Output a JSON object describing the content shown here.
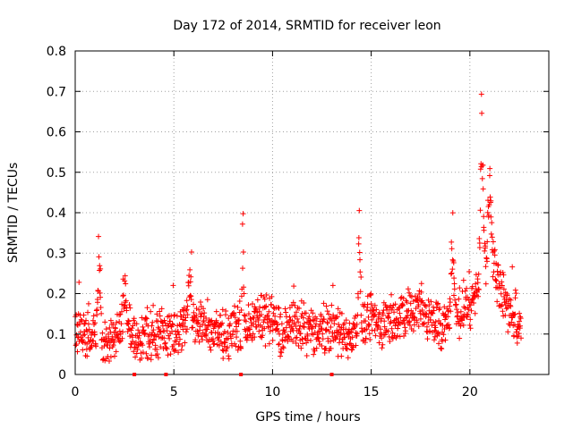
{
  "chart_data": {
    "type": "scatter",
    "title": "Day 172 of 2014, SRMTID for receiver leon",
    "xlabel": "GPS time / hours",
    "ylabel": "SRMTID / TECUs",
    "xlim": [
      0,
      24
    ],
    "ylim": [
      0,
      0.8
    ],
    "xticks": [
      0,
      5,
      10,
      15,
      20
    ],
    "xtick_labels": [
      "0",
      "5",
      "10",
      "15",
      "20"
    ],
    "yticks": [
      0,
      0.1,
      0.2,
      0.3,
      0.4,
      0.5,
      0.6,
      0.7,
      0.8
    ],
    "ytick_labels": [
      "0",
      "0.1",
      "0.2",
      "0.3",
      "0.4",
      "0.5",
      "0.6",
      "0.7",
      "0.8"
    ],
    "grid": true,
    "marker": "+",
    "color": "#ff0000",
    "trend": [
      [
        0.0,
        0.12
      ],
      [
        0.5,
        0.1
      ],
      [
        1.0,
        0.08
      ],
      [
        1.5,
        0.07
      ],
      [
        2.0,
        0.09
      ],
      [
        2.5,
        0.12
      ],
      [
        3.0,
        0.09
      ],
      [
        3.5,
        0.1
      ],
      [
        4.0,
        0.1
      ],
      [
        4.5,
        0.11
      ],
      [
        5.0,
        0.1
      ],
      [
        5.5,
        0.12
      ],
      [
        6.0,
        0.13
      ],
      [
        6.5,
        0.12
      ],
      [
        7.0,
        0.1
      ],
      [
        7.5,
        0.1
      ],
      [
        8.0,
        0.11
      ],
      [
        8.5,
        0.12
      ],
      [
        9.0,
        0.13
      ],
      [
        9.5,
        0.14
      ],
      [
        10.0,
        0.13
      ],
      [
        10.5,
        0.1
      ],
      [
        11.0,
        0.13
      ],
      [
        11.5,
        0.12
      ],
      [
        12.0,
        0.11
      ],
      [
        12.5,
        0.1
      ],
      [
        13.0,
        0.12
      ],
      [
        13.5,
        0.1
      ],
      [
        14.0,
        0.1
      ],
      [
        14.5,
        0.12
      ],
      [
        15.0,
        0.14
      ],
      [
        15.5,
        0.12
      ],
      [
        16.0,
        0.13
      ],
      [
        16.5,
        0.14
      ],
      [
        17.0,
        0.16
      ],
      [
        17.5,
        0.17
      ],
      [
        18.0,
        0.13
      ],
      [
        18.5,
        0.12
      ],
      [
        19.0,
        0.12
      ],
      [
        19.5,
        0.16
      ],
      [
        20.0,
        0.17
      ],
      [
        20.5,
        0.25
      ],
      [
        21.0,
        0.3
      ],
      [
        21.5,
        0.22
      ],
      [
        22.0,
        0.16
      ],
      [
        22.5,
        0.13
      ]
    ],
    "spikes": [
      {
        "x": 1.2,
        "peak": 0.35,
        "width": 0.15
      },
      {
        "x": 2.5,
        "peak": 0.26,
        "width": 0.15
      },
      {
        "x": 5.8,
        "peak": 0.3,
        "width": 0.15
      },
      {
        "x": 8.5,
        "peak": 0.44,
        "width": 0.08
      },
      {
        "x": 14.4,
        "peak": 0.41,
        "width": 0.12
      },
      {
        "x": 19.1,
        "peak": 0.41,
        "width": 0.15
      },
      {
        "x": 20.6,
        "peak": 0.71,
        "width": 0.15
      },
      {
        "x": 21.0,
        "peak": 0.55,
        "width": 0.15
      }
    ],
    "data_end_x": 22.6,
    "gap_markers_x": [
      3.0,
      4.6,
      8.4,
      13.0
    ]
  }
}
